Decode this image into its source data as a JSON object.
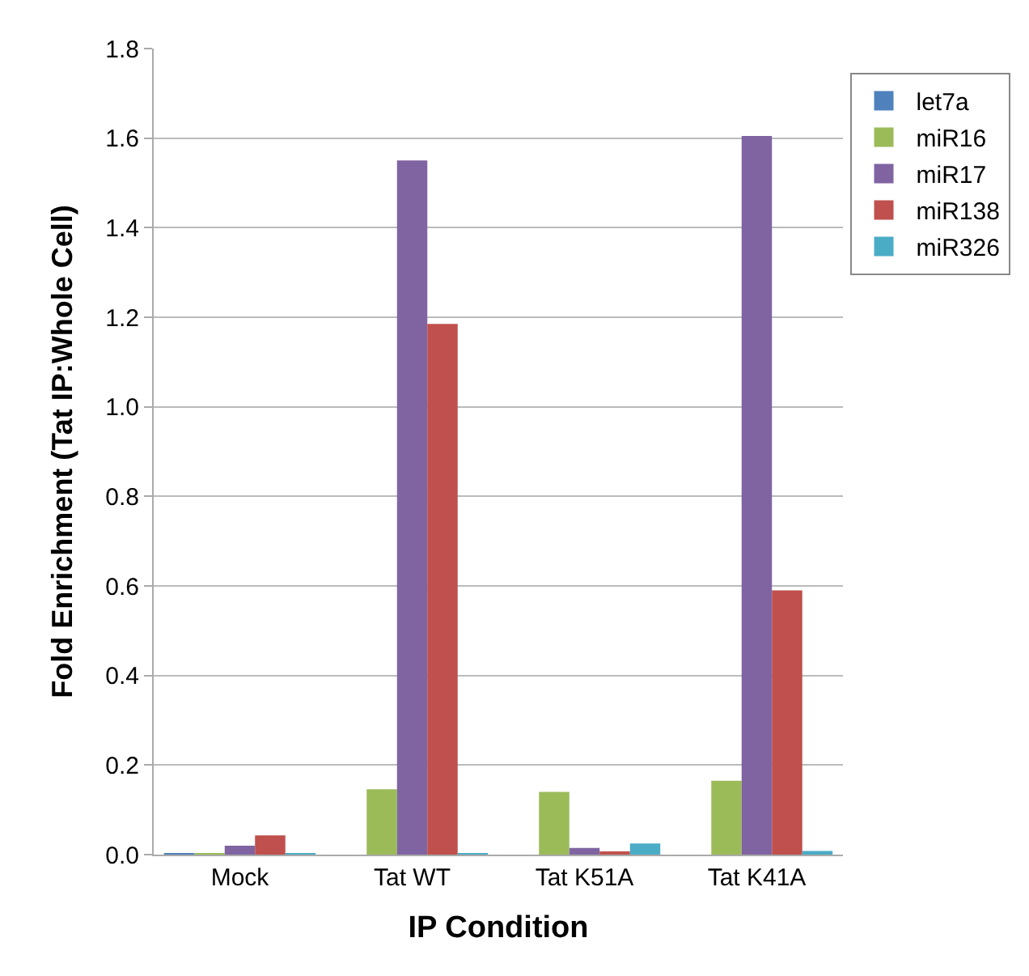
{
  "chart_data": {
    "type": "bar",
    "xlabel": "IP Condition",
    "ylabel": "Fold Enrichment (Tat IP:Whole Cell)",
    "categories": [
      "Mock",
      "Tat WT",
      "Tat K51A",
      "Tat K41A"
    ],
    "series": [
      {
        "name": "let7a",
        "color": "#4f81bd",
        "values": [
          0.003,
          0,
          0,
          0
        ]
      },
      {
        "name": "miR16",
        "color": "#9bbb59",
        "values": [
          0.003,
          0.146,
          0.14,
          0.165
        ]
      },
      {
        "name": "miR17",
        "color": "#8064a2",
        "values": [
          0.02,
          1.55,
          0.015,
          1.605
        ]
      },
      {
        "name": "miR138",
        "color": "#c0504d",
        "values": [
          0.043,
          1.185,
          0.005,
          0.59
        ]
      },
      {
        "name": "miR326",
        "color": "#4bacc6",
        "values": [
          0.003,
          0.002,
          0.025,
          0.008
        ]
      }
    ],
    "ylim": [
      0,
      1.8
    ],
    "yticks": [
      {
        "value": 0,
        "label": "0.0"
      },
      {
        "value": 0.2,
        "label": "0.2"
      },
      {
        "value": 0.4,
        "label": "0.4"
      },
      {
        "value": 0.6,
        "label": "0.6"
      },
      {
        "value": 0.8,
        "label": "0.8"
      },
      {
        "value": 1.0,
        "label": "1.0"
      },
      {
        "value": 1.2,
        "label": "1.2"
      },
      {
        "value": 1.4,
        "label": "1.4"
      },
      {
        "value": 1.6,
        "label": "1.6"
      },
      {
        "value": 1.8,
        "label": "1.8"
      }
    ],
    "grid": "y",
    "legend": "top right"
  }
}
